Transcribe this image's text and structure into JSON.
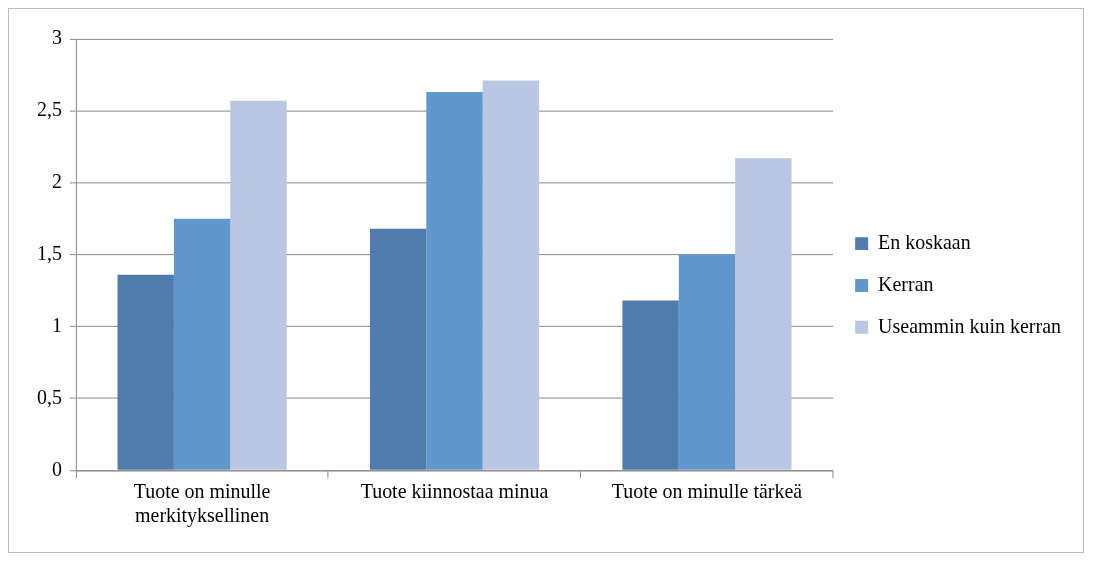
{
  "chart_data": {
    "type": "bar",
    "categories": [
      "Tuote on minulle merkityksellinen",
      "Tuote kiinnostaa minua",
      "Tuote on minulle tärkeä"
    ],
    "series": [
      {
        "name": "En koskaan",
        "color": "#4f7bad",
        "values": [
          1.36,
          1.68,
          1.18
        ]
      },
      {
        "name": "Kerran",
        "color": "#6097cc",
        "values": [
          1.75,
          2.63,
          1.5
        ]
      },
      {
        "name": "Useammin kuin kerran",
        "color": "#b9c7e2",
        "values": [
          2.57,
          2.71,
          2.17
        ]
      }
    ],
    "ylim": [
      0,
      3
    ],
    "yticks": [
      0,
      {
        "value": 0.5,
        "label": "0,5"
      },
      1,
      {
        "value": 1.5,
        "label": "1,5"
      },
      2,
      {
        "value": 2.5,
        "label": "2,5"
      },
      3
    ],
    "grid": "y",
    "legend": "right"
  }
}
